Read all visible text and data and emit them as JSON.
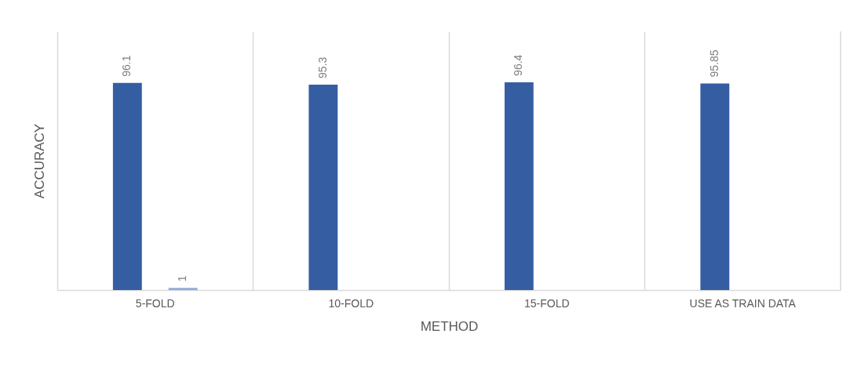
{
  "chart_data": {
    "type": "bar",
    "xlabel": "METHOD",
    "ylabel": "ACCURACY",
    "categories": [
      "5-FOLD",
      "10-FOLD",
      "15-FOLD",
      "USE AS TRAIN DATA"
    ],
    "series": [
      {
        "color": "#355ea2",
        "values": [
          96.1,
          95.3,
          96.4,
          95.85
        ]
      },
      {
        "color": "#8faadc",
        "values": [
          1,
          null,
          null,
          null
        ]
      }
    ],
    "ylim": [
      0,
      120
    ],
    "data_labels": true,
    "grid": "x",
    "tick_labels": "x"
  }
}
